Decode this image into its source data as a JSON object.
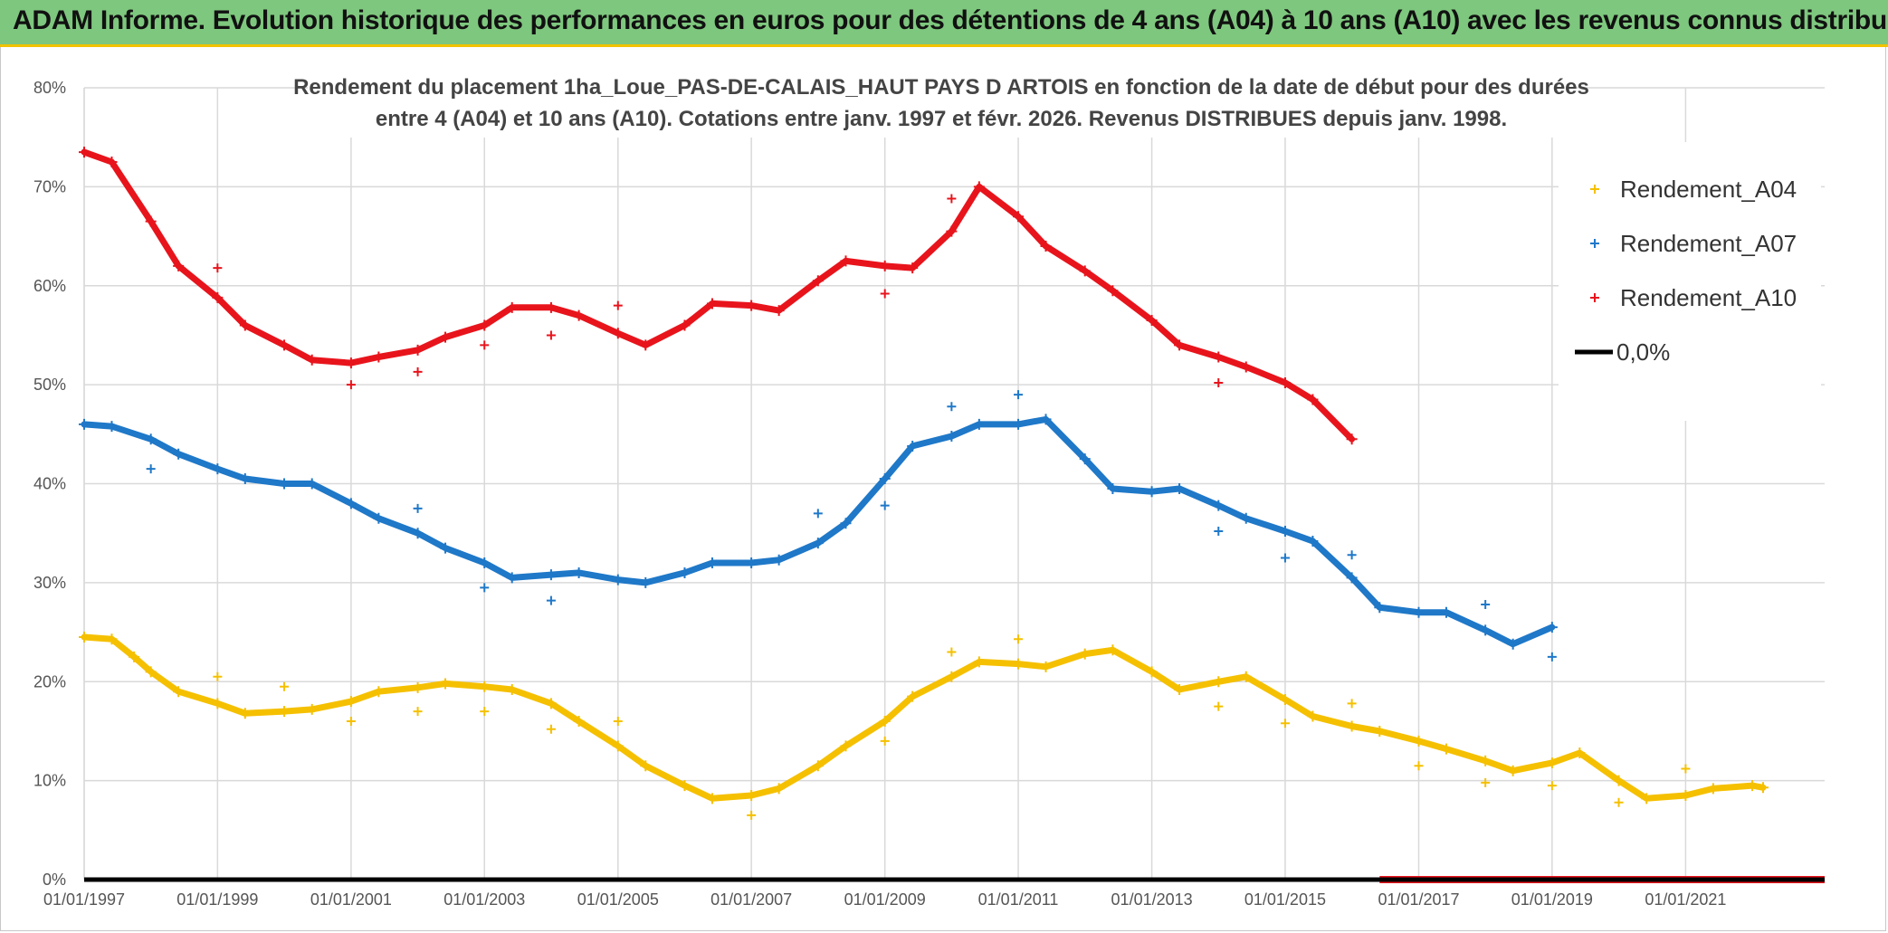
{
  "banner": {
    "title": "ADAM Informe. Evolution historique des performances en euros pour des détentions de 4 ans (A04) à 10 ans (A10) avec les revenus connus distribués",
    "accent": "#f2c200",
    "background": "#7ec77e"
  },
  "chart_data": {
    "type": "scatter",
    "title_lines": [
      "Rendement du placement 1ha_Loue_PAS-DE-CALAIS_HAUT PAYS D ARTOIS en fonction de la date de début pour des durées",
      "entre 4 (A04) et 10 ans (A10). Cotations entre janv. 1997 et févr. 2026. Revenus DISTRIBUES depuis janv. 1998."
    ],
    "xlim": [
      "1997-01-01",
      "2023-02-01"
    ],
    "ylim": [
      0,
      80
    ],
    "x_tick_labels": [
      "01/01/1997",
      "01/01/1999",
      "01/01/2001",
      "01/01/2003",
      "01/01/2005",
      "01/01/2007",
      "01/01/2009",
      "01/01/2011",
      "01/01/2013",
      "01/01/2015",
      "01/01/2017",
      "01/01/2019",
      "01/01/2021"
    ],
    "y_tick_labels": [
      "0%",
      "10%",
      "20%",
      "30%",
      "40%",
      "50%",
      "60%",
      "70%",
      "80%"
    ],
    "grid": true,
    "legend_position": "top-right",
    "series": [
      {
        "name": "Rendement_A04",
        "color": "#f5c000",
        "marker": "+",
        "x": [
          "1997-01-01",
          "1997-06-01",
          "1997-10-01",
          "1998-01-01",
          "1998-06-01",
          "1999-01-01",
          "1999-06-01",
          "2000-01-01",
          "2000-06-01",
          "2001-01-01",
          "2001-06-01",
          "2002-01-01",
          "2002-06-01",
          "2003-01-01",
          "2003-06-01",
          "2004-01-01",
          "2004-06-01",
          "2005-01-01",
          "2005-06-01",
          "2006-01-01",
          "2006-06-01",
          "2007-01-01",
          "2007-06-01",
          "2008-01-01",
          "2008-06-01",
          "2009-01-01",
          "2009-06-01",
          "2010-01-01",
          "2010-06-01",
          "2011-01-01",
          "2011-06-01",
          "2012-01-01",
          "2012-06-01",
          "2013-01-01",
          "2013-06-01",
          "2014-01-01",
          "2014-06-01",
          "2015-01-01",
          "2015-06-01",
          "2016-01-01",
          "2016-06-01",
          "2017-01-01",
          "2017-06-01",
          "2018-01-01",
          "2018-06-01",
          "2019-01-01",
          "2019-06-01",
          "2020-01-01",
          "2020-06-01",
          "2021-01-01",
          "2021-06-01",
          "2022-01-01",
          "2022-03-01"
        ],
        "y": [
          24.5,
          24.3,
          22.5,
          21.0,
          19.0,
          17.8,
          16.8,
          17.0,
          17.2,
          18.0,
          19.0,
          19.4,
          19.8,
          19.5,
          19.2,
          17.8,
          16.0,
          13.5,
          11.5,
          9.5,
          8.2,
          8.5,
          9.2,
          11.5,
          13.5,
          16.0,
          18.5,
          20.5,
          22.0,
          21.8,
          21.5,
          22.8,
          23.2,
          21.0,
          19.2,
          20.0,
          20.5,
          18.2,
          16.5,
          15.5,
          15.0,
          14.0,
          13.2,
          12.0,
          11.0,
          11.8,
          12.8,
          10.0,
          8.2,
          8.5,
          9.2,
          9.5,
          9.3
        ],
        "outliers_x": [
          "1999-01-01",
          "2000-01-01",
          "2001-01-01",
          "2002-01-01",
          "2003-01-01",
          "2004-01-01",
          "2005-01-01",
          "2007-01-01",
          "2009-01-01",
          "2010-01-01",
          "2011-01-01",
          "2014-01-01",
          "2015-01-01",
          "2016-01-01",
          "2017-01-01",
          "2018-01-01",
          "2019-01-01",
          "2020-01-01",
          "2021-01-01"
        ],
        "outliers_y": [
          20.5,
          19.5,
          16.0,
          17.0,
          17.0,
          15.2,
          16.0,
          6.5,
          14.0,
          23.0,
          24.3,
          17.5,
          15.8,
          17.8,
          11.5,
          9.8,
          9.5,
          7.8,
          11.2
        ]
      },
      {
        "name": "Rendement_A07",
        "color": "#1f78c8",
        "marker": "+",
        "x": [
          "1997-01-01",
          "1997-06-01",
          "1998-01-01",
          "1998-06-01",
          "1999-01-01",
          "1999-06-01",
          "2000-01-01",
          "2000-06-01",
          "2001-01-01",
          "2001-06-01",
          "2002-01-01",
          "2002-06-01",
          "2003-01-01",
          "2003-06-01",
          "2004-01-01",
          "2004-06-01",
          "2005-01-01",
          "2005-06-01",
          "2006-01-01",
          "2006-06-01",
          "2007-01-01",
          "2007-06-01",
          "2008-01-01",
          "2008-06-01",
          "2009-01-01",
          "2009-06-01",
          "2010-01-01",
          "2010-06-01",
          "2011-01-01",
          "2011-06-01",
          "2012-01-01",
          "2012-06-01",
          "2013-01-01",
          "2013-06-01",
          "2014-01-01",
          "2014-06-01",
          "2015-01-01",
          "2015-06-01",
          "2016-01-01",
          "2016-06-01",
          "2017-01-01",
          "2017-06-01",
          "2018-01-01",
          "2018-06-01",
          "2019-01-01"
        ],
        "y": [
          46.0,
          45.8,
          44.5,
          43.0,
          41.5,
          40.5,
          40.0,
          40.0,
          38.0,
          36.5,
          35.0,
          33.5,
          32.0,
          30.5,
          30.8,
          31.0,
          30.3,
          30.0,
          31.0,
          32.0,
          32.0,
          32.3,
          34.0,
          36.0,
          40.5,
          43.8,
          44.8,
          46.0,
          46.0,
          46.5,
          42.5,
          39.5,
          39.2,
          39.5,
          37.8,
          36.5,
          35.2,
          34.2,
          30.5,
          27.5,
          27.0,
          27.0,
          25.2,
          23.8,
          25.5
        ],
        "outliers_x": [
          "1998-01-01",
          "2002-01-01",
          "2003-01-01",
          "2004-01-01",
          "2008-01-01",
          "2009-01-01",
          "2010-01-01",
          "2011-01-01",
          "2014-01-01",
          "2015-01-01",
          "2016-01-01",
          "2018-01-01",
          "2019-01-01"
        ],
        "outliers_y": [
          41.5,
          37.5,
          29.5,
          28.2,
          37.0,
          37.8,
          47.8,
          49.0,
          35.2,
          32.5,
          32.8,
          27.8,
          22.5
        ]
      },
      {
        "name": "Rendement_A10",
        "color": "#e8141c",
        "marker": "+",
        "x": [
          "1997-01-01",
          "1997-06-01",
          "1998-01-01",
          "1998-06-01",
          "1999-01-01",
          "1999-06-01",
          "2000-01-01",
          "2000-06-01",
          "2001-01-01",
          "2001-06-01",
          "2002-01-01",
          "2002-06-01",
          "2003-01-01",
          "2003-06-01",
          "2004-01-01",
          "2004-06-01",
          "2005-01-01",
          "2005-06-01",
          "2006-01-01",
          "2006-06-01",
          "2007-01-01",
          "2007-06-01",
          "2008-01-01",
          "2008-06-01",
          "2009-01-01",
          "2009-06-01",
          "2010-01-01",
          "2010-06-01",
          "2011-01-01",
          "2011-06-01",
          "2012-01-01",
          "2012-06-01",
          "2013-01-01",
          "2013-06-01",
          "2014-01-01",
          "2014-06-01",
          "2015-01-01",
          "2015-06-01",
          "2016-01-01"
        ],
        "y": [
          73.5,
          72.5,
          66.5,
          62.0,
          58.8,
          56.0,
          54.0,
          52.5,
          52.2,
          52.8,
          53.5,
          54.8,
          56.0,
          57.8,
          57.8,
          57.0,
          55.2,
          54.0,
          56.0,
          58.2,
          58.0,
          57.5,
          60.5,
          62.5,
          62.0,
          61.8,
          65.5,
          70.0,
          67.0,
          64.0,
          61.5,
          59.5,
          56.5,
          54.0,
          52.8,
          51.8,
          50.2,
          48.5,
          44.5
        ],
        "outliers_x": [
          "1999-01-01",
          "2001-01-01",
          "2002-01-01",
          "2003-01-01",
          "2004-01-01",
          "2005-01-01",
          "2009-01-01",
          "2010-01-01",
          "2014-01-01"
        ],
        "outliers_y": [
          61.8,
          50.0,
          51.3,
          54.0,
          55.0,
          58.0,
          59.2,
          68.8,
          50.2
        ],
        "zero_band_x": [
          "2016-06-01",
          "2023-02-01"
        ],
        "zero_band_y": 0
      },
      {
        "name": "0,0%",
        "color": "#000000",
        "marker": "line",
        "x": [
          "1997-01-01",
          "2023-02-01"
        ],
        "y": [
          0,
          0
        ]
      }
    ]
  }
}
